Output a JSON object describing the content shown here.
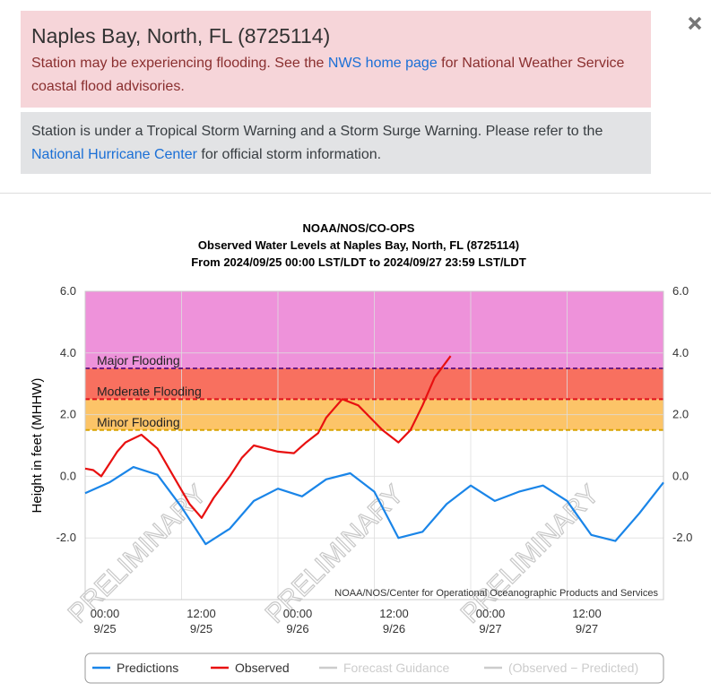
{
  "flood_alert": {
    "title": "Naples Bay, North, FL (8725114)",
    "text_before": "Station may be experiencing flooding. See the ",
    "link": "NWS home page",
    "text_after": " for National Weather Service coastal flood advisories."
  },
  "storm_alert": {
    "text_before": "Station is under a Tropical Storm Warning and a Storm Surge Warning. Please refer to the ",
    "link": "National Hurricane Center",
    "text_after": " for official storm information."
  },
  "chart_data": {
    "type": "line",
    "title": "NOAA/NOS/CO-OPS",
    "subtitle": "Observed Water Levels at Naples Bay, North, FL (8725114)",
    "subtitle2": "From 2024/09/25 00:00 LST/LDT to 2024/09/27 23:59 LST/LDT",
    "ylabel": "Height in feet (MHHW)",
    "credit": "NOAA/NOS/Center for Operational Oceanographic Products and Services",
    "watermark": "PRELIMINARY",
    "grid": true,
    "ylim": [
      -4,
      6
    ],
    "yticks": [
      {
        "value": -2,
        "label": "-2.0"
      },
      {
        "value": 0,
        "label": "0.0"
      },
      {
        "value": 2,
        "label": "2.0"
      },
      {
        "value": 4,
        "label": "4.0"
      },
      {
        "value": 6,
        "label": "6.0"
      }
    ],
    "xlim": [
      "2024-09-25T00:00",
      "2024-09-28T00:00"
    ],
    "xticks": [
      {
        "value": "2024-09-25T00:00",
        "label": "00:00"
      },
      {
        "value": "2024-09-25T12:00",
        "label": "12:00"
      },
      {
        "value": "2024-09-26T00:00",
        "label": "00:00"
      },
      {
        "value": "2024-09-26T12:00",
        "label": "12:00"
      },
      {
        "value": "2024-09-27T00:00",
        "label": "00:00"
      },
      {
        "value": "2024-09-27T12:00",
        "label": "12:00"
      }
    ],
    "xtick_dates": [
      "9/25",
      "9/25",
      "9/26",
      "9/26",
      "9/27",
      "9/27"
    ],
    "flood_levels": [
      {
        "name": "Minor Flooding",
        "value": 1.5,
        "color": "#fcc468",
        "line_color": "#d9a400"
      },
      {
        "name": "Moderate Flooding",
        "value": 2.5,
        "color": "#f8705f",
        "line_color": "#e0101a"
      },
      {
        "name": "Major Flooding",
        "value": 3.5,
        "color": "#ee92da",
        "line_color": "#6e1f80"
      }
    ],
    "series": [
      {
        "name": "Predictions",
        "color": "#1a85e8",
        "x": [
          "2024-09-25T00:00",
          "2024-09-25T03:00",
          "2024-09-25T06:00",
          "2024-09-25T09:00",
          "2024-09-25T12:00",
          "2024-09-25T15:00",
          "2024-09-25T18:00",
          "2024-09-25T21:00",
          "2024-09-26T00:00",
          "2024-09-26T03:00",
          "2024-09-26T06:00",
          "2024-09-26T09:00",
          "2024-09-26T12:00",
          "2024-09-26T15:00",
          "2024-09-26T18:00",
          "2024-09-26T21:00",
          "2024-09-27T00:00",
          "2024-09-27T03:00",
          "2024-09-27T06:00",
          "2024-09-27T09:00",
          "2024-09-27T12:00",
          "2024-09-27T15:00",
          "2024-09-27T18:00",
          "2024-09-27T21:00",
          "2024-09-28T00:00"
        ],
        "values": [
          -0.55,
          -0.2,
          0.3,
          0.05,
          -1.0,
          -2.2,
          -1.7,
          -0.8,
          -0.4,
          -0.65,
          -0.1,
          0.1,
          -0.5,
          -2.0,
          -1.8,
          -0.9,
          -0.3,
          -0.8,
          -0.5,
          -0.3,
          -0.8,
          -1.9,
          -2.1,
          -1.2,
          -0.2
        ]
      },
      {
        "name": "Observed",
        "color": "#e81010",
        "x": [
          "2024-09-25T00:00",
          "2024-09-25T01:00",
          "2024-09-25T02:00",
          "2024-09-25T03:00",
          "2024-09-25T04:00",
          "2024-09-25T05:00",
          "2024-09-25T07:00",
          "2024-09-25T09:00",
          "2024-09-25T11:00",
          "2024-09-25T13:00",
          "2024-09-25T14:30",
          "2024-09-25T16:00",
          "2024-09-25T18:00",
          "2024-09-25T19:30",
          "2024-09-25T21:00",
          "2024-09-25T22:30",
          "2024-09-26T00:00",
          "2024-09-26T02:00",
          "2024-09-26T03:30",
          "2024-09-26T05:00",
          "2024-09-26T06:00",
          "2024-09-26T07:00",
          "2024-09-26T08:00",
          "2024-09-26T09:00",
          "2024-09-26T10:00",
          "2024-09-26T11:30",
          "2024-09-26T13:00",
          "2024-09-26T15:00",
          "2024-09-26T16:30",
          "2024-09-26T18:00",
          "2024-09-26T19:30",
          "2024-09-26T21:30"
        ],
        "values": [
          0.25,
          0.2,
          0.0,
          0.4,
          0.8,
          1.1,
          1.35,
          0.9,
          0.0,
          -0.9,
          -1.35,
          -0.7,
          0.0,
          0.6,
          1.0,
          0.9,
          0.8,
          0.75,
          1.1,
          1.4,
          1.9,
          2.2,
          2.5,
          2.4,
          2.3,
          1.9,
          1.5,
          1.1,
          1.5,
          2.3,
          3.2,
          3.9
        ]
      },
      {
        "name": "Forecast Guidance",
        "color": "#cccccc",
        "disabled": true,
        "x": [],
        "values": []
      },
      {
        "name": "(Observed − Predicted)",
        "color": "#cccccc",
        "disabled": true,
        "x": [],
        "values": []
      }
    ]
  }
}
